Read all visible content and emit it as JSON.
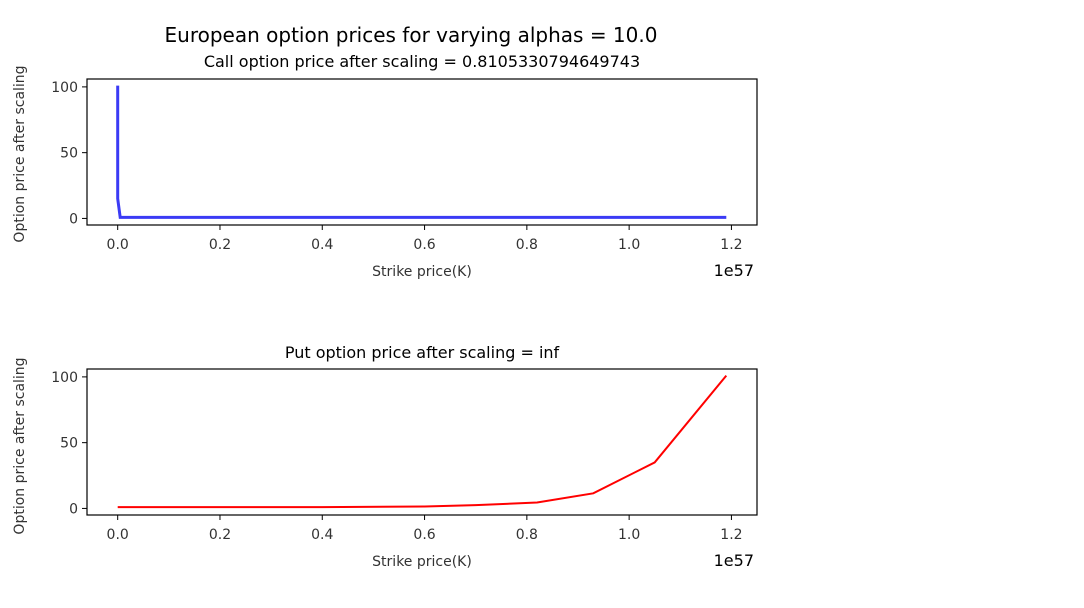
{
  "figure": {
    "suptitle": "European option prices for varying alphas = 10.0"
  },
  "chart_data": [
    {
      "type": "line",
      "title": "Call option price after scaling = 0.8105330794649743",
      "xlabel": "Strike price(K)",
      "ylabel": "Option price after scaling",
      "x_offset_label": "1e57",
      "xlim": [
        -0.06,
        1.25
      ],
      "ylim": [
        -5,
        106
      ],
      "xticks": [
        0.0,
        0.2,
        0.4,
        0.6,
        0.8,
        1.0,
        1.2
      ],
      "xtick_labels": [
        "0.0",
        "0.2",
        "0.4",
        "0.6",
        "0.8",
        "1.0",
        "1.2"
      ],
      "yticks": [
        0,
        50,
        100
      ],
      "ytick_labels": [
        "0",
        "50",
        "100"
      ],
      "grid": false,
      "line_color": "#3b3bf5",
      "series": [
        {
          "x": [
            0.0,
            0.0,
            0.005,
            0.1,
            0.2,
            0.4,
            0.6,
            0.8,
            1.0,
            1.19
          ],
          "values": [
            101,
            15,
            0.8,
            0.8,
            0.8,
            0.8,
            0.8,
            0.8,
            0.8,
            0.8
          ]
        }
      ]
    },
    {
      "type": "line",
      "title": "Put option price after scaling = inf",
      "xlabel": "Strike price(K)",
      "ylabel": "Option price after scaling",
      "x_offset_label": "1e57",
      "xlim": [
        -0.06,
        1.25
      ],
      "ylim": [
        -5,
        106
      ],
      "xticks": [
        0.0,
        0.2,
        0.4,
        0.6,
        0.8,
        1.0,
        1.2
      ],
      "xtick_labels": [
        "0.0",
        "0.2",
        "0.4",
        "0.6",
        "0.8",
        "1.0",
        "1.2"
      ],
      "yticks": [
        0,
        50,
        100
      ],
      "ytick_labels": [
        "0",
        "50",
        "100"
      ],
      "grid": false,
      "line_color": "#ff0000",
      "series": [
        {
          "x": [
            0.0,
            0.2,
            0.4,
            0.6,
            0.7,
            0.82,
            0.93,
            1.05,
            1.19
          ],
          "values": [
            1,
            1,
            1,
            1.5,
            2.5,
            4.5,
            11.5,
            35,
            101
          ]
        }
      ]
    }
  ]
}
